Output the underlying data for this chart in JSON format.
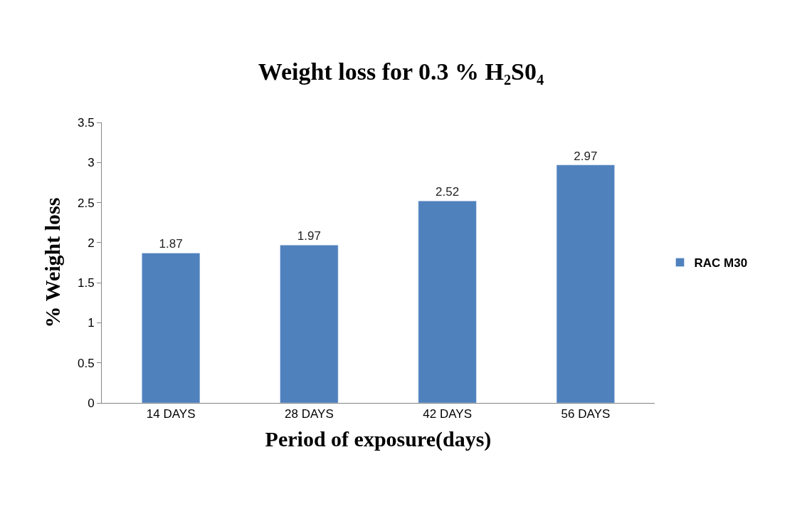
{
  "chart_data": {
    "type": "bar",
    "title": "Weight loss for 0.3 % H₂S0₄",
    "xlabel": "Period of exposure(days)",
    "ylabel": "% Weight loss",
    "categories": [
      "14 DAYS",
      "28 DAYS",
      "42 DAYS",
      "56 DAYS"
    ],
    "series": [
      {
        "name": "RAC M30",
        "color": "#4f81bd",
        "values": [
          1.87,
          1.97,
          2.52,
          2.97
        ]
      }
    ],
    "ylim": [
      0,
      3.5
    ],
    "yticks": [
      0,
      0.5,
      1,
      1.5,
      2,
      2.5,
      3,
      3.5
    ],
    "data_labels": true,
    "legend": "right"
  }
}
